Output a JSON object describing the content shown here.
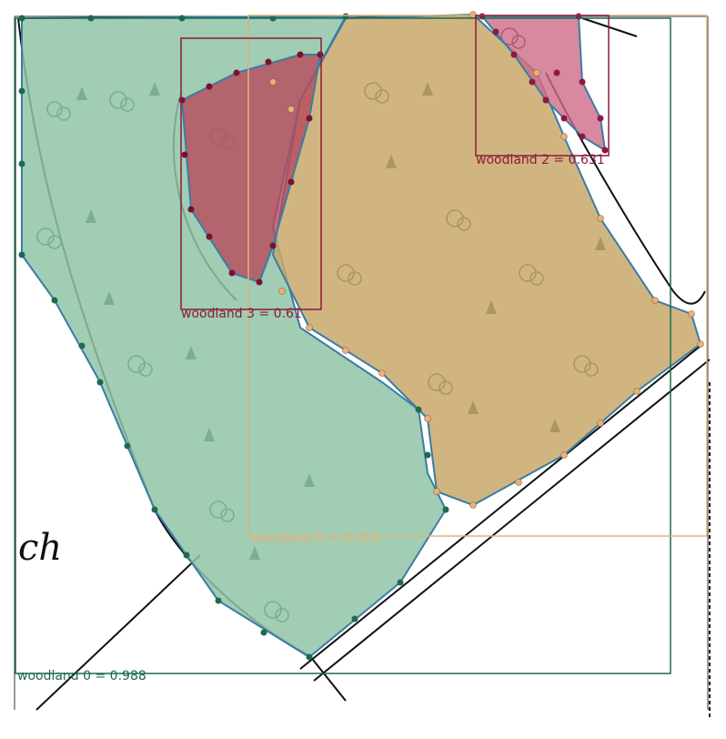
{
  "map": {
    "background": "#ffffff",
    "ink_color": "#0d2b1c",
    "map_text": "ch",
    "detections": [
      {
        "label": "woodland 0 = 0.988",
        "color": "#1b6b4f",
        "fill": "#8fc4a6"
      },
      {
        "label": "woodland 1 = 0.710",
        "color": "#e0b27a",
        "fill": "#c9a86a"
      },
      {
        "label": "woodland 2 = 0.631",
        "color": "#8b1a3c",
        "fill": "#cf6b87"
      },
      {
        "label": "woodland 3 = 0.61",
        "color": "#8b1a3c",
        "fill": "#b84a5a"
      }
    ]
  }
}
